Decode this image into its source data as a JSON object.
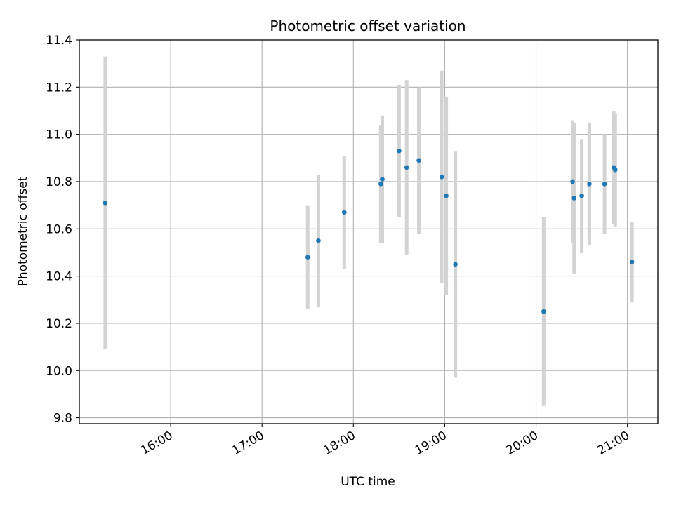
{
  "chart_data": {
    "type": "scatter",
    "title": "Photometric offset variation",
    "xlabel": "UTC time",
    "ylabel": "Photometric offset",
    "x_unit": "UTC time (HH:MM)",
    "xlim": [
      "15:00",
      "21:20"
    ],
    "ylim": [
      9.775,
      11.4
    ],
    "x_ticks": [
      "16:00",
      "17:00",
      "18:00",
      "19:00",
      "20:00",
      "21:00"
    ],
    "y_ticks": [
      "9.8",
      "10.0",
      "10.2",
      "10.4",
      "10.6",
      "10.8",
      "11.0",
      "11.2",
      "11.4"
    ],
    "grid": true,
    "point_color": "#1f77b4",
    "errorbar_color": "#d3d3d3",
    "points": [
      {
        "x": "15:17",
        "y": 10.71,
        "err": 0.62
      },
      {
        "x": "17:30",
        "y": 10.48,
        "err": 0.22
      },
      {
        "x": "17:37",
        "y": 10.55,
        "err": 0.28
      },
      {
        "x": "17:54",
        "y": 10.67,
        "err": 0.24
      },
      {
        "x": "18:18",
        "y": 10.79,
        "err": 0.25
      },
      {
        "x": "18:19",
        "y": 10.81,
        "err": 0.27
      },
      {
        "x": "18:30",
        "y": 10.93,
        "err": 0.28
      },
      {
        "x": "18:35",
        "y": 10.86,
        "err": 0.37
      },
      {
        "x": "18:43",
        "y": 10.89,
        "err": 0.31
      },
      {
        "x": "18:58",
        "y": 10.82,
        "err": 0.45
      },
      {
        "x": "19:01",
        "y": 10.74,
        "err": 0.42
      },
      {
        "x": "19:07",
        "y": 10.45,
        "err": 0.48
      },
      {
        "x": "20:05",
        "y": 10.25,
        "err": 0.4
      },
      {
        "x": "20:24",
        "y": 10.8,
        "err": 0.26
      },
      {
        "x": "20:25",
        "y": 10.73,
        "err": 0.32
      },
      {
        "x": "20:30",
        "y": 10.74,
        "err": 0.24
      },
      {
        "x": "20:35",
        "y": 10.79,
        "err": 0.26
      },
      {
        "x": "20:45",
        "y": 10.79,
        "err": 0.21
      },
      {
        "x": "20:51",
        "y": 10.86,
        "err": 0.24
      },
      {
        "x": "20:52",
        "y": 10.85,
        "err": 0.24
      },
      {
        "x": "21:03",
        "y": 10.46,
        "err": 0.17
      }
    ]
  }
}
